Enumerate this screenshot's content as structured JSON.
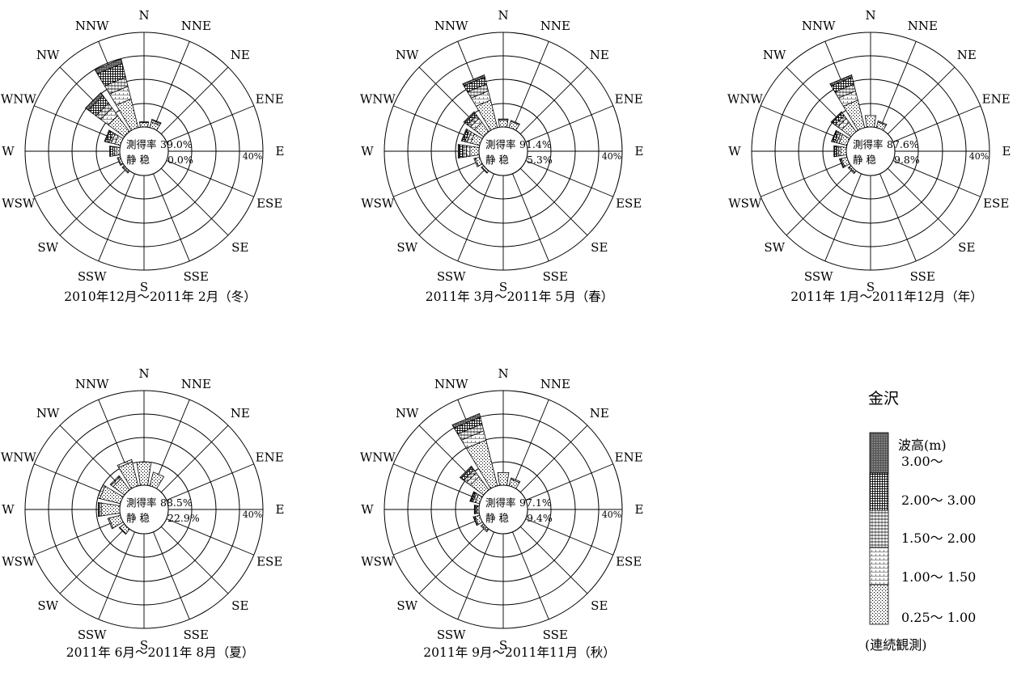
{
  "station": "金沢",
  "directions": [
    "N",
    "NNE",
    "NE",
    "ENE",
    "E",
    "ESE",
    "SE",
    "SSE",
    "S",
    "SSW",
    "SW",
    "WSW",
    "W",
    "WNW",
    "NW",
    "NNW"
  ],
  "ring_label": "40%",
  "center_labels": {
    "rate": "測得率",
    "calm": "静 稳"
  },
  "legend": {
    "header": "波高(m)",
    "classes": [
      "3.00～",
      "2.00～ 3.00",
      "1.50～ 2.00",
      "1.00～ 1.50",
      "0.25～ 1.00"
    ],
    "footer": "(連続観測)"
  },
  "chart_data": [
    {
      "type": "wind-rose",
      "caption": "2010年12月～2011年 2月（冬）",
      "rate_value": "39.0%",
      "calm_value": "0.0%",
      "rmax_percent": 40,
      "classes": [
        "0.25～1.00",
        "1.00～1.50",
        "1.50～2.00",
        "2.00～3.00",
        "3.00～"
      ],
      "series": {
        "N": [
          2.0,
          0.3,
          0,
          0,
          0
        ],
        "NNE": [
          2.5,
          0.8,
          0.4,
          0,
          0
        ],
        "NE": [
          0,
          0,
          0,
          0,
          0
        ],
        "ENE": [
          0,
          0,
          0,
          0,
          0
        ],
        "E": [
          0,
          0,
          0,
          0,
          0
        ],
        "ESE": [
          0,
          0,
          0,
          0,
          0
        ],
        "SE": [
          0,
          0,
          0,
          0,
          0
        ],
        "SSE": [
          0,
          0,
          0,
          0,
          0
        ],
        "S": [
          0,
          0,
          0,
          0,
          0
        ],
        "SSW": [
          0,
          0,
          0,
          0,
          0
        ],
        "SW": [
          0.8,
          0.4,
          0,
          0,
          0
        ],
        "WSW": [
          1.0,
          0.4,
          0,
          0,
          0
        ],
        "W": [
          1.3,
          1.0,
          0.8,
          1.0,
          0.3
        ],
        "WNW": [
          2.5,
          1.5,
          1.0,
          1.5,
          0.5
        ],
        "NW": [
          8.5,
          4.0,
          2.5,
          4.0,
          1.5
        ],
        "NNW": [
          12.5,
          5.5,
          4.0,
          6.0,
          2.0
        ]
      }
    },
    {
      "type": "wind-rose",
      "caption": "2011年 3月～2011年 5月（春）",
      "rate_value": "91.4%",
      "calm_value": "5.3%",
      "rmax_percent": 40,
      "classes": [
        "0.25～1.00",
        "1.00～1.50",
        "1.50～2.00",
        "2.00～3.00",
        "3.00～"
      ],
      "series": {
        "N": [
          3.0,
          0.5,
          0,
          0,
          0
        ],
        "NNE": [
          2.8,
          0.4,
          0,
          0,
          0
        ],
        "NE": [
          0,
          0,
          0,
          0,
          0
        ],
        "ENE": [
          0,
          0,
          0,
          0,
          0
        ],
        "E": [
          0,
          0,
          0,
          0,
          0
        ],
        "ESE": [
          0,
          0,
          0,
          0,
          0
        ],
        "SE": [
          0,
          0,
          0,
          0,
          0
        ],
        "SSE": [
          0,
          0,
          0,
          0,
          0
        ],
        "S": [
          0,
          0,
          0,
          0,
          0
        ],
        "SSW": [
          0,
          0,
          0,
          0,
          0
        ],
        "SW": [
          1.0,
          0.3,
          0,
          0,
          0
        ],
        "WSW": [
          2.0,
          0.5,
          0,
          0,
          0
        ],
        "W": [
          4.0,
          1.5,
          1.5,
          1.5,
          0.5
        ],
        "WNW": [
          4.0,
          1.5,
          1.0,
          1.0,
          0.5
        ],
        "NW": [
          5.0,
          2.0,
          1.5,
          1.5,
          0.5
        ],
        "NNW": [
          12.0,
          4.0,
          3.0,
          3.0,
          1.0
        ]
      }
    },
    {
      "type": "wind-rose",
      "caption": "2011年 1月～2011年12月（年）",
      "rate_value": "87.6%",
      "calm_value": "9.8%",
      "rmax_percent": 40,
      "classes": [
        "0.25～1.00",
        "1.00～1.50",
        "1.50～2.00",
        "2.00～3.00",
        "3.00～"
      ],
      "series": {
        "N": [
          5.0,
          0,
          0,
          0,
          0
        ],
        "NNE": [
          2.5,
          0.5,
          0,
          0,
          0
        ],
        "NE": [
          0,
          0,
          0,
          0,
          0
        ],
        "ENE": [
          0,
          0,
          0,
          0,
          0
        ],
        "E": [
          0,
          0,
          0,
          0,
          0
        ],
        "ESE": [
          0,
          0,
          0,
          0,
          0
        ],
        "SE": [
          0,
          0,
          0,
          0,
          0
        ],
        "SSE": [
          0,
          0,
          0,
          0,
          0
        ],
        "S": [
          0,
          0,
          0,
          0,
          0
        ],
        "SSW": [
          0,
          0,
          0,
          0,
          0
        ],
        "SW": [
          1.0,
          0.5,
          0,
          0,
          0
        ],
        "WSW": [
          2.5,
          0.5,
          0.3,
          0,
          0
        ],
        "W": [
          2.5,
          1.0,
          0.8,
          0.8,
          0.3
        ],
        "WNW": [
          3.5,
          1.0,
          1.0,
          1.0,
          0.3
        ],
        "NW": [
          5.0,
          2.0,
          1.5,
          1.5,
          0.5
        ],
        "NNW": [
          12.0,
          4.0,
          3.0,
          3.0,
          1.0
        ]
      }
    },
    {
      "type": "wind-rose",
      "caption": "2011年 6月～2011年 8月（夏）",
      "rate_value": "88.5%",
      "calm_value": "22.9%",
      "rmax_percent": 40,
      "classes": [
        "0.25～1.00",
        "1.00～1.50",
        "1.50～2.00",
        "2.00～3.00",
        "3.00～"
      ],
      "series": {
        "N": [
          10.0,
          0,
          0,
          0,
          0
        ],
        "NNE": [
          6.0,
          0,
          0,
          0,
          0
        ],
        "NE": [
          0,
          0,
          0,
          0,
          0
        ],
        "ENE": [
          0,
          0,
          0,
          0,
          0
        ],
        "E": [
          0,
          0,
          0,
          0,
          0
        ],
        "ESE": [
          0,
          0,
          0,
          0,
          0
        ],
        "SE": [
          0,
          0,
          0,
          0,
          0
        ],
        "SSE": [
          0,
          0,
          0,
          0,
          0
        ],
        "S": [
          0,
          0,
          0,
          0,
          0
        ],
        "SSW": [
          0,
          0,
          0,
          0,
          0
        ],
        "SW": [
          2.5,
          0.3,
          0,
          0,
          0
        ],
        "WSW": [
          5.0,
          0.5,
          0,
          0,
          0
        ],
        "W": [
          8.0,
          0.8,
          0.5,
          0,
          0
        ],
        "WNW": [
          9.0,
          1.0,
          0,
          0,
          0
        ],
        "NW": [
          6.0,
          1.0,
          0.5,
          0,
          0
        ],
        "NNW": [
          10.5,
          1.0,
          0,
          0,
          0
        ]
      }
    },
    {
      "type": "wind-rose",
      "caption": "2011年 9月～2011年11月（秋）",
      "rate_value": "97.1%",
      "calm_value": "9.4%",
      "rmax_percent": 40,
      "classes": [
        "0.25～1.00",
        "1.00～1.50",
        "1.50～2.00",
        "2.00～3.00",
        "3.00～"
      ],
      "series": {
        "N": [
          5.5,
          0,
          0,
          0,
          0
        ],
        "NNE": [
          3.0,
          0.5,
          0,
          0,
          0
        ],
        "NE": [
          0,
          0,
          0,
          0,
          0
        ],
        "ENE": [
          0,
          0,
          0,
          0,
          0
        ],
        "E": [
          0,
          0,
          0,
          0,
          0
        ],
        "ESE": [
          0,
          0,
          0,
          0,
          0
        ],
        "SE": [
          0,
          0,
          0,
          0,
          0
        ],
        "SSE": [
          0,
          0,
          0,
          0,
          0
        ],
        "S": [
          0,
          0,
          0,
          0,
          0
        ],
        "SSW": [
          0,
          0,
          0,
          0,
          0
        ],
        "SW": [
          1.0,
          0.5,
          0,
          0,
          0
        ],
        "WSW": [
          2.0,
          0.5,
          0.3,
          0,
          0
        ],
        "W": [
          1.0,
          0.5,
          0.3,
          0.3,
          0
        ],
        "WNW": [
          2.0,
          1.0,
          0.5,
          0.5,
          0.3
        ],
        "NW": [
          7.0,
          2.0,
          1.5,
          1.5,
          0.5
        ],
        "NNW": [
          20.0,
          4.0,
          3.0,
          3.0,
          1.5
        ]
      }
    }
  ]
}
